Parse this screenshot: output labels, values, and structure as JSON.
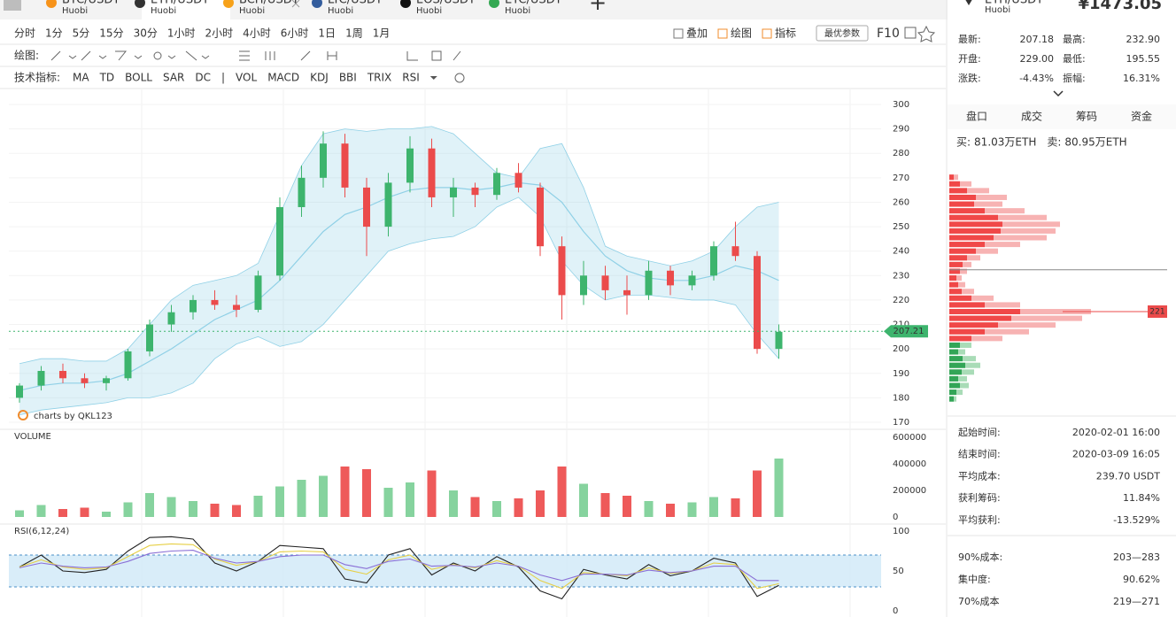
{
  "tabs": [
    {
      "symbol": "BTC/USDT",
      "exchange": "Huobi",
      "icon_color": "#f7931a"
    },
    {
      "symbol": "ETH/USDT",
      "exchange": "Huobi",
      "icon_color": "#333333",
      "active": true
    },
    {
      "symbol": "BCH/USDT",
      "exchange": "Huobi",
      "icon_color": "#f7a21a"
    },
    {
      "symbol": "LTC/USDT",
      "exchange": "Huobi",
      "icon_color": "#345d9d"
    },
    {
      "symbol": "EOS/USDT",
      "exchange": "Huobi",
      "icon_color": "#111111"
    },
    {
      "symbol": "ETC/USDT",
      "exchange": "Huobi",
      "icon_color": "#33a852"
    }
  ],
  "toolbar": {
    "periods": [
      {
        "label": "分时"
      },
      {
        "label": "1分"
      },
      {
        "label": "5分"
      },
      {
        "label": "15分"
      },
      {
        "label": "30分"
      },
      {
        "label": "1小时"
      },
      {
        "label": "2小时"
      },
      {
        "label": "4小时",
        "active": true
      },
      {
        "label": "6小时"
      },
      {
        "label": "1日"
      },
      {
        "label": "1周"
      },
      {
        "label": "1月"
      }
    ],
    "tools": [
      {
        "label": "叠加"
      },
      {
        "label": "绘图",
        "active": true
      },
      {
        "label": "指标",
        "active": true
      }
    ],
    "param_button": "最优参数",
    "f10": "F10",
    "draw_label": "绘图:",
    "indicator_label": "技术指标:",
    "indicators": [
      {
        "label": "MA"
      },
      {
        "label": "TD"
      },
      {
        "label": "BOLL",
        "active": true
      },
      {
        "label": "SAR"
      },
      {
        "label": "DC"
      },
      {
        "label": "|"
      },
      {
        "label": "VOL",
        "active": true
      },
      {
        "label": "MACD"
      },
      {
        "label": "KDJ"
      },
      {
        "label": "BBI"
      },
      {
        "label": "TRIX"
      },
      {
        "label": "RSI",
        "active": true
      }
    ],
    "active_color": "#f08c2d"
  },
  "chart_data": [
    {
      "type": "candlestick",
      "watermark": "charts by QKL123",
      "ohlc": [
        [
          180,
          186,
          178,
          185
        ],
        [
          185,
          193,
          183,
          191
        ],
        [
          191,
          194,
          186,
          188
        ],
        [
          188,
          190,
          184,
          186
        ],
        [
          186,
          189,
          183,
          188
        ],
        [
          188,
          200,
          187,
          199
        ],
        [
          199,
          212,
          197,
          210
        ],
        [
          210,
          218,
          207,
          215
        ],
        [
          215,
          222,
          212,
          220
        ],
        [
          220,
          224,
          216,
          218
        ],
        [
          218,
          222,
          213,
          216
        ],
        [
          216,
          232,
          215,
          230
        ],
        [
          230,
          262,
          228,
          258
        ],
        [
          258,
          275,
          254,
          270
        ],
        [
          270,
          289,
          266,
          284
        ],
        [
          284,
          288,
          262,
          266
        ],
        [
          266,
          270,
          238,
          250
        ],
        [
          250,
          272,
          246,
          268
        ],
        [
          268,
          287,
          264,
          282
        ],
        [
          282,
          286,
          258,
          262
        ],
        [
          262,
          270,
          254,
          266
        ],
        [
          266,
          268,
          258,
          263
        ],
        [
          263,
          274,
          261,
          272
        ],
        [
          272,
          276,
          264,
          266
        ],
        [
          266,
          268,
          238,
          242
        ],
        [
          242,
          246,
          212,
          222
        ],
        [
          222,
          236,
          218,
          230
        ],
        [
          230,
          234,
          220,
          224
        ],
        [
          224,
          230,
          214,
          222
        ],
        [
          222,
          236,
          220,
          232
        ],
        [
          232,
          234,
          222,
          226
        ],
        [
          226,
          232,
          224,
          230
        ],
        [
          230,
          244,
          228,
          242
        ],
        [
          242,
          252,
          236,
          238
        ],
        [
          238,
          240,
          198,
          200
        ],
        [
          200,
          210,
          196,
          207
        ]
      ],
      "bands": {
        "upper": [
          194,
          196,
          196,
          195,
          195,
          200,
          210,
          220,
          226,
          228,
          230,
          235,
          255,
          275,
          288,
          290,
          289,
          290,
          290,
          291,
          288,
          280,
          272,
          270,
          282,
          284,
          266,
          242,
          238,
          236,
          234,
          236,
          240,
          250,
          258,
          260
        ],
        "mid": [
          183,
          185,
          186,
          186,
          187,
          190,
          195,
          200,
          206,
          212,
          216,
          220,
          228,
          238,
          248,
          255,
          258,
          262,
          265,
          266,
          266,
          265,
          266,
          268,
          267,
          260,
          248,
          238,
          232,
          229,
          228,
          228,
          230,
          234,
          232,
          228
        ],
        "lower": [
          173,
          175,
          176,
          177,
          178,
          180,
          180,
          182,
          186,
          196,
          202,
          205,
          201,
          203,
          210,
          220,
          230,
          240,
          243,
          245,
          246,
          250,
          258,
          262,
          254,
          236,
          226,
          220,
          222,
          222,
          221,
          220,
          220,
          218,
          206,
          196
        ]
      },
      "ylim": [
        170,
        300
      ],
      "yticks": [
        170,
        180,
        190,
        200,
        210,
        220,
        230,
        240,
        250,
        260,
        270,
        280,
        290,
        300
      ],
      "last_price": 207.21,
      "up_color": "#3db46d",
      "down_color": "#eb4b4b",
      "band_color": "#8fd0e6"
    },
    {
      "type": "bar",
      "title": "VOLUME",
      "values": [
        50000,
        90000,
        60000,
        70000,
        40000,
        110000,
        180000,
        150000,
        120000,
        100000,
        90000,
        160000,
        230000,
        280000,
        310000,
        380000,
        360000,
        220000,
        260000,
        350000,
        200000,
        150000,
        120000,
        140000,
        200000,
        380000,
        250000,
        180000,
        160000,
        120000,
        100000,
        110000,
        150000,
        140000,
        350000,
        440000
      ],
      "ylim": [
        0,
        600000
      ],
      "yticks": [
        0,
        200000,
        400000,
        600000
      ],
      "up_color": "#86d39e",
      "down_color": "#ee5a5a"
    },
    {
      "type": "line",
      "title": "RSI(6,12,24)",
      "series": [
        {
          "color": "#222222",
          "values": [
            55,
            70,
            50,
            48,
            52,
            75,
            92,
            93,
            90,
            60,
            50,
            62,
            82,
            80,
            78,
            40,
            35,
            70,
            78,
            45,
            60,
            50,
            68,
            55,
            25,
            15,
            52,
            45,
            40,
            58,
            44,
            50,
            66,
            60,
            18,
            32
          ]
        },
        {
          "color": "#e6cf45",
          "values": [
            55,
            64,
            55,
            52,
            54,
            68,
            82,
            84,
            83,
            65,
            57,
            62,
            74,
            75,
            74,
            52,
            46,
            64,
            70,
            52,
            58,
            54,
            63,
            56,
            38,
            28,
            48,
            46,
            44,
            54,
            47,
            50,
            60,
            58,
            28,
            34
          ]
        },
        {
          "color": "#8a6fd6",
          "values": [
            54,
            60,
            56,
            54,
            55,
            62,
            72,
            75,
            76,
            66,
            60,
            62,
            68,
            70,
            70,
            58,
            53,
            62,
            65,
            56,
            57,
            55,
            60,
            56,
            45,
            38,
            46,
            46,
            45,
            51,
            48,
            50,
            56,
            56,
            38,
            38
          ]
        }
      ],
      "ylim": [
        0,
        100
      ],
      "yticks": [
        0,
        50,
        100
      ],
      "bands": [
        30,
        70
      ]
    }
  ],
  "sidebar": {
    "symbol": "ETH/USDT",
    "exchange": "Huobi",
    "price": "¥1473.05",
    "stats": [
      {
        "label": "最新:",
        "value": "207.18",
        "color": "#333333"
      },
      {
        "label": "最高:",
        "value": "232.90",
        "color": "#2eaa5c"
      },
      {
        "label": "开盘:",
        "value": "229.00",
        "color": "#333333"
      },
      {
        "label": "最低:",
        "value": "195.55",
        "color": "#eb4b4b"
      },
      {
        "label": "涨跌:",
        "value": "-4.43%",
        "color": "#eb4b4b"
      },
      {
        "label": "振幅:",
        "value": "16.31%",
        "color": "#eb4b4b"
      }
    ],
    "tabs": [
      {
        "label": "盘口"
      },
      {
        "label": "成交"
      },
      {
        "label": "筹码",
        "active": true
      },
      {
        "label": "资金"
      }
    ],
    "buy": {
      "label": "买:",
      "value": "81.03万ETH"
    },
    "sell": {
      "label": "卖:",
      "value": "80.95万ETH"
    },
    "chips": {
      "levels": [
        281,
        278,
        275,
        272,
        269,
        266,
        263,
        260,
        257,
        254,
        251,
        248,
        245,
        242,
        239,
        236,
        233,
        230,
        227,
        224,
        221,
        218,
        215,
        212,
        209,
        206,
        203,
        200,
        197,
        194,
        191,
        188,
        185,
        182
      ],
      "near": [
        5,
        12,
        20,
        30,
        28,
        40,
        55,
        60,
        58,
        50,
        40,
        30,
        20,
        15,
        12,
        8,
        10,
        14,
        25,
        40,
        80,
        70,
        55,
        40,
        25,
        12,
        10,
        15,
        18,
        14,
        10,
        12,
        8,
        5
      ],
      "all": [
        10,
        25,
        45,
        65,
        60,
        85,
        110,
        125,
        120,
        110,
        80,
        55,
        35,
        25,
        20,
        14,
        18,
        28,
        50,
        80,
        160,
        150,
        120,
        90,
        60,
        25,
        18,
        30,
        35,
        28,
        20,
        22,
        15,
        8
      ],
      "marker": 221,
      "avg_cost": 239.7
    },
    "summary": [
      {
        "label": "起始时间:",
        "value": "2020-02-01 16:00",
        "color": "#333333"
      },
      {
        "label": "结束时间:",
        "value": "2020-03-09 16:05",
        "color": "#333333"
      },
      {
        "label": "平均成本:",
        "value": "239.70 USDT",
        "color": "#eb4b4b"
      },
      {
        "label": "获利筹码:",
        "value": "11.84%",
        "color": "#333333"
      },
      {
        "label": "平均获利:",
        "value": "-13.529%",
        "color": "#eb4b4b"
      }
    ],
    "summary2": [
      {
        "label": "90%成本:",
        "value": "203—283"
      },
      {
        "label": "集中度:",
        "value": "90.62%"
      },
      {
        "label": "70%成本",
        "value": "219—271"
      }
    ]
  }
}
